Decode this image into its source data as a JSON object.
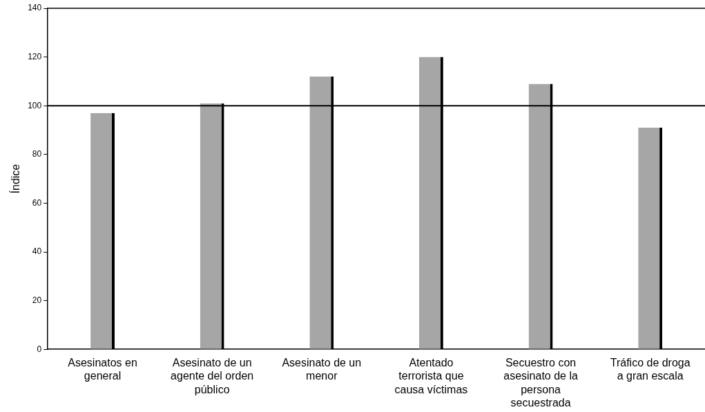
{
  "chart_data": {
    "type": "bar",
    "ylabel": "Índice",
    "categories": [
      "Asesinatos en general",
      "Asesinato de un agente del orden público",
      "Asesinato de un menor",
      "Atentado terrorista que causa víctimas",
      "Secuestro con asesinato de la persona secuestrada",
      "Tráfico de droga a gran escala"
    ],
    "values": [
      97,
      101,
      112,
      120,
      109,
      91
    ],
    "color": "#a6a6a6",
    "ylim": [
      0,
      140
    ],
    "yticks": [
      0,
      20,
      40,
      60,
      80,
      100,
      120,
      140
    ],
    "grid": false,
    "legend": false,
    "ref_lines": [
      {
        "axis": "y",
        "value": 100,
        "color": "#000000"
      }
    ]
  }
}
